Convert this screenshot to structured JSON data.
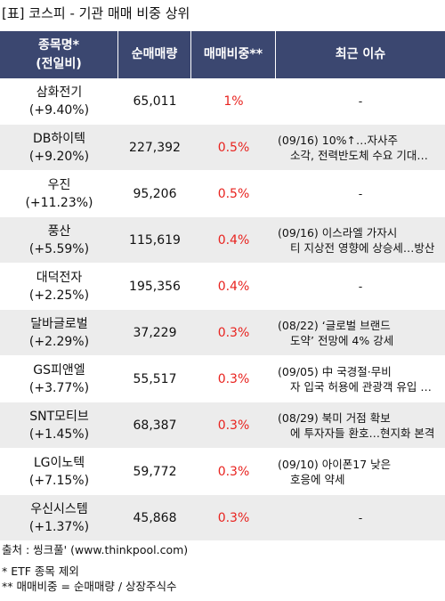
{
  "title": "[표] 코스피 - 기관 매매 비중 상위",
  "headers": {
    "name_line1": "종목명*",
    "name_line2": "(전일비)",
    "net_volume": "순매매량",
    "ratio": "매매비중**",
    "issue": "최근 이슈"
  },
  "rows": [
    {
      "name": "삼화전기",
      "change": "(+9.40%)",
      "volume": "65,011",
      "ratio": "1%",
      "issue1": "-",
      "issue2": ""
    },
    {
      "name": "DB하이텍",
      "change": "(+9.20%)",
      "volume": "227,392",
      "ratio": "0.5%",
      "issue1": "(09/16) 10%↑…자사주",
      "issue2": "소각, 전력반도체 수요 기대…"
    },
    {
      "name": "우진",
      "change": "(+11.23%)",
      "volume": "95,206",
      "ratio": "0.5%",
      "issue1": "-",
      "issue2": ""
    },
    {
      "name": "풍산",
      "change": "(+5.59%)",
      "volume": "115,619",
      "ratio": "0.4%",
      "issue1": "(09/16) 이스라엘 가자시",
      "issue2": "티 지상전 영향에 상승세…방산"
    },
    {
      "name": "대덕전자",
      "change": "(+2.25%)",
      "volume": "195,356",
      "ratio": "0.4%",
      "issue1": "-",
      "issue2": ""
    },
    {
      "name": "달바글로벌",
      "change": "(+2.29%)",
      "volume": "37,229",
      "ratio": "0.3%",
      "issue1": "(08/22) ‘글로벌 브랜드",
      "issue2": "도약’ 전망에 4% 강세"
    },
    {
      "name": "GS피앤엘",
      "change": "(+3.77%)",
      "volume": "55,517",
      "ratio": "0.3%",
      "issue1": "(09/05) 中 국경절·무비",
      "issue2": "자 입국 허용에 관광객 유입 …"
    },
    {
      "name": "SNT모티브",
      "change": "(+1.45%)",
      "volume": "68,387",
      "ratio": "0.3%",
      "issue1": "(08/29) 북미 거점 확보",
      "issue2": "에 투자자들 환호…현지화 본격"
    },
    {
      "name": "LG이노텍",
      "change": "(+7.15%)",
      "volume": "59,772",
      "ratio": "0.3%",
      "issue1": "(09/10) 아이폰17 낮은",
      "issue2": "호응에 약세"
    },
    {
      "name": "우신시스템",
      "change": "(+1.37%)",
      "volume": "45,868",
      "ratio": "0.3%",
      "issue1": "-",
      "issue2": ""
    }
  ],
  "footer": {
    "source": "출처 : 씽크풀' (www.thinkpool.com)",
    "note1": "* ETF 종목 제외",
    "note2": "** 매매비중 = 순매매량 / 상장주식수"
  },
  "colors": {
    "header_bg": "#3b4770",
    "ratio_text": "#e8231f",
    "row_alt_bg": "#ececec"
  }
}
